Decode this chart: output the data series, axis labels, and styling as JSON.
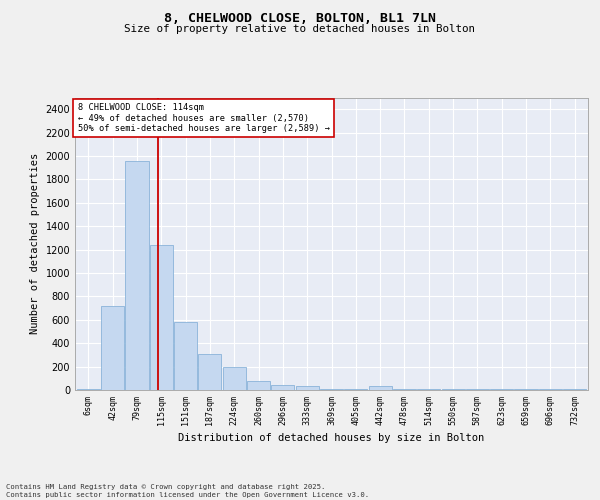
{
  "title1": "8, CHELWOOD CLOSE, BOLTON, BL1 7LN",
  "title2": "Size of property relative to detached houses in Bolton",
  "xlabel": "Distribution of detached houses by size in Bolton",
  "ylabel": "Number of detached properties",
  "categories": [
    "6sqm",
    "42sqm",
    "79sqm",
    "115sqm",
    "151sqm",
    "187sqm",
    "224sqm",
    "260sqm",
    "296sqm",
    "333sqm",
    "369sqm",
    "405sqm",
    "442sqm",
    "478sqm",
    "514sqm",
    "550sqm",
    "587sqm",
    "623sqm",
    "659sqm",
    "696sqm",
    "732sqm"
  ],
  "values": [
    10,
    720,
    1960,
    1240,
    580,
    305,
    200,
    75,
    40,
    30,
    10,
    10,
    30,
    10,
    5,
    5,
    5,
    5,
    5,
    5,
    5
  ],
  "bar_color": "#c5d8f0",
  "bar_edge_color": "#7baad4",
  "bg_color": "#e8ecf5",
  "grid_color": "#ffffff",
  "vline_x_index": 2.87,
  "vline_color": "#cc0000",
  "annotation_text": "8 CHELWOOD CLOSE: 114sqm\n← 49% of detached houses are smaller (2,570)\n50% of semi-detached houses are larger (2,589) →",
  "annotation_box_color": "#ffffff",
  "annotation_box_edge": "#cc0000",
  "footer": "Contains HM Land Registry data © Crown copyright and database right 2025.\nContains public sector information licensed under the Open Government Licence v3.0.",
  "ylim": [
    0,
    2500
  ],
  "yticks": [
    0,
    200,
    400,
    600,
    800,
    1000,
    1200,
    1400,
    1600,
    1800,
    2000,
    2200,
    2400
  ],
  "fig_bg": "#f0f0f0"
}
